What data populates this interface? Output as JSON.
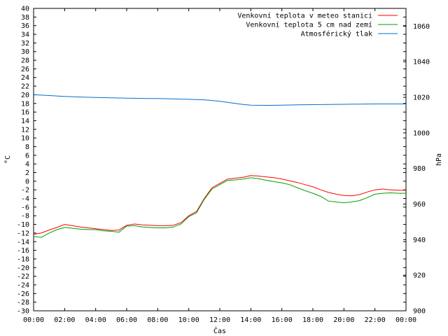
{
  "chart_data": {
    "type": "line",
    "xlabel": "Čas",
    "ylabel": "°C",
    "y2label": "hPa",
    "xlim": [
      0,
      24
    ],
    "ylim": [
      -30,
      40
    ],
    "y2lim": [
      900,
      1070
    ],
    "x_ticks": [
      {
        "value": 0,
        "label": "00:00"
      },
      {
        "value": 2,
        "label": "02:00"
      },
      {
        "value": 4,
        "label": "04:00"
      },
      {
        "value": 6,
        "label": "06:00"
      },
      {
        "value": 8,
        "label": "08:00"
      },
      {
        "value": 10,
        "label": "10:00"
      },
      {
        "value": 12,
        "label": "12:00"
      },
      {
        "value": 14,
        "label": "14:00"
      },
      {
        "value": 16,
        "label": "16:00"
      },
      {
        "value": 18,
        "label": "18:00"
      },
      {
        "value": 20,
        "label": "20:00"
      },
      {
        "value": 22,
        "label": "22:00"
      },
      {
        "value": 24,
        "label": "00:00"
      }
    ],
    "y_ticks": [
      40,
      38,
      36,
      34,
      32,
      30,
      28,
      26,
      24,
      22,
      20,
      18,
      16,
      14,
      12,
      10,
      8,
      6,
      4,
      2,
      0,
      -2,
      -4,
      -6,
      -8,
      -10,
      -12,
      -14,
      -16,
      -18,
      -20,
      -22,
      -24,
      -26,
      -28,
      -30
    ],
    "y2_ticks": [
      900,
      920,
      940,
      960,
      980,
      1000,
      1020,
      1040,
      1060
    ],
    "grid": false,
    "legend_position": "top-right",
    "series": [
      {
        "name": "Venkovní teplota v meteo stanici",
        "axis": "left",
        "color": "#ff0000",
        "x": [
          0,
          0.5,
          1,
          1.5,
          2,
          2.5,
          3,
          3.5,
          4,
          4.5,
          5,
          5.5,
          6,
          6.5,
          7,
          7.5,
          8,
          8.5,
          9,
          9.5,
          10,
          10.5,
          11,
          11.5,
          12,
          12.5,
          13,
          13.5,
          14,
          14.5,
          15,
          15.5,
          16,
          16.5,
          17,
          17.5,
          18,
          18.5,
          19,
          19.5,
          20,
          20.5,
          21,
          21.5,
          22,
          22.5,
          23,
          23.5,
          24
        ],
        "values": [
          -12.3,
          -12.0,
          -11.3,
          -10.7,
          -10.0,
          -10.3,
          -10.6,
          -10.8,
          -11.0,
          -11.2,
          -11.4,
          -11.3,
          -10.2,
          -9.9,
          -10.1,
          -10.2,
          -10.3,
          -10.3,
          -10.2,
          -9.6,
          -8.0,
          -7.0,
          -4.0,
          -1.5,
          -0.5,
          0.5,
          0.7,
          0.9,
          1.3,
          1.2,
          1.0,
          0.8,
          0.5,
          0.1,
          -0.3,
          -0.8,
          -1.3,
          -2.0,
          -2.6,
          -3.0,
          -3.3,
          -3.4,
          -3.1,
          -2.5,
          -2.0,
          -1.8,
          -2.0,
          -2.1,
          -2.1
        ]
      },
      {
        "name": "Venkovní teplota 5 cm nad zemí",
        "axis": "left",
        "color": "#00a000",
        "x": [
          0,
          0.5,
          1,
          1.5,
          2,
          2.5,
          3,
          3.5,
          4,
          4.5,
          5,
          5.5,
          6,
          6.5,
          7,
          7.5,
          8,
          8.5,
          9,
          9.5,
          10,
          10.5,
          11,
          11.5,
          12,
          12.5,
          13,
          13.5,
          14,
          14.5,
          15,
          15.5,
          16,
          16.5,
          17,
          17.5,
          18,
          18.5,
          19,
          19.5,
          20,
          20.5,
          21,
          21.5,
          22,
          22.5,
          23,
          23.5,
          24
        ],
        "values": [
          -12.8,
          -13.0,
          -12.0,
          -11.2,
          -10.7,
          -10.9,
          -11.1,
          -11.2,
          -11.2,
          -11.5,
          -11.6,
          -11.8,
          -10.4,
          -10.3,
          -10.6,
          -10.7,
          -10.8,
          -10.8,
          -10.6,
          -9.9,
          -8.2,
          -7.3,
          -4.2,
          -1.8,
          -0.8,
          0.2,
          0.3,
          0.5,
          0.8,
          0.6,
          0.2,
          -0.1,
          -0.4,
          -0.8,
          -1.5,
          -2.2,
          -2.8,
          -3.5,
          -4.6,
          -4.8,
          -5.0,
          -4.8,
          -4.5,
          -3.8,
          -3.0,
          -2.8,
          -2.7,
          -2.8,
          -2.8
        ]
      },
      {
        "name": "Atmosférický tlak",
        "axis": "right",
        "color": "#0070d0",
        "x": [
          0,
          1,
          2,
          3,
          4,
          5,
          6,
          7,
          8,
          9,
          10,
          11,
          12,
          12.5,
          13,
          13.5,
          14,
          15,
          16,
          17,
          18,
          19,
          20,
          21,
          22,
          23,
          24
        ],
        "values": [
          1021.5,
          1021.0,
          1020.5,
          1020.2,
          1019.9,
          1019.7,
          1019.5,
          1019.4,
          1019.3,
          1019.1,
          1018.9,
          1018.6,
          1017.8,
          1017.2,
          1016.6,
          1016.0,
          1015.6,
          1015.5,
          1015.6,
          1015.8,
          1015.9,
          1016.0,
          1016.1,
          1016.2,
          1016.3,
          1016.3,
          1016.3
        ]
      }
    ]
  }
}
